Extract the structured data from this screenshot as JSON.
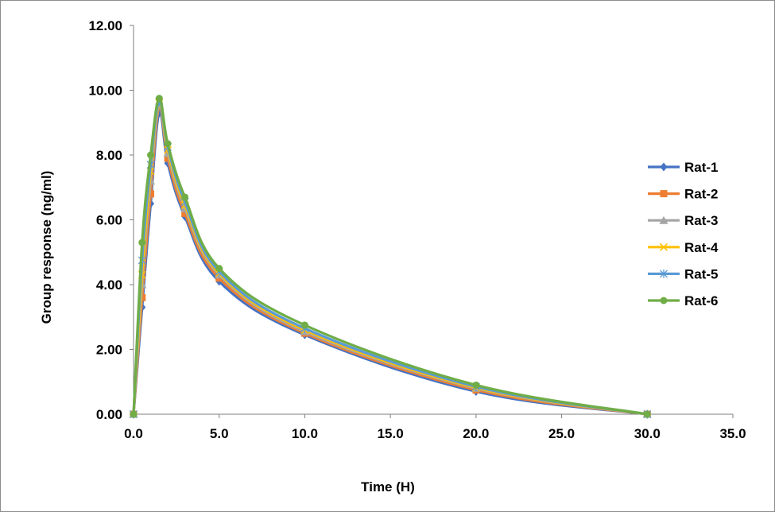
{
  "chart_data": {
    "type": "line",
    "title": "",
    "xlabel": "Time (H)",
    "ylabel": "Group response (ng/ml)",
    "xlim": [
      0,
      35
    ],
    "ylim": [
      0,
      12
    ],
    "x_ticks": [
      "0.0",
      "5.0",
      "10.0",
      "15.0",
      "20.0",
      "25.0",
      "30.0",
      "35.0"
    ],
    "y_ticks": [
      "0.00",
      "2.00",
      "4.00",
      "6.00",
      "8.00",
      "10.00",
      "12.00"
    ],
    "grid": false,
    "legend_position": "right",
    "x": [
      0,
      0.5,
      1,
      1.5,
      2,
      3,
      5,
      10,
      20,
      30
    ],
    "series": [
      {
        "name": "Rat-1",
        "color": "#4472C4",
        "marker": "diamond",
        "values": [
          0,
          3.3,
          6.5,
          9.3,
          7.75,
          6.1,
          4.1,
          2.45,
          0.7,
          0
        ]
      },
      {
        "name": "Rat-2",
        "color": "#ED7D31",
        "marker": "square",
        "values": [
          0,
          3.6,
          6.8,
          9.5,
          7.9,
          6.2,
          4.2,
          2.5,
          0.75,
          0
        ]
      },
      {
        "name": "Rat-3",
        "color": "#A5A5A5",
        "marker": "triangle",
        "values": [
          0,
          4.0,
          7.2,
          9.55,
          8.05,
          6.35,
          4.3,
          2.55,
          0.8,
          0
        ]
      },
      {
        "name": "Rat-4",
        "color": "#FFC000",
        "marker": "x",
        "values": [
          0,
          4.3,
          7.5,
          9.6,
          8.15,
          6.45,
          4.35,
          2.6,
          0.82,
          0
        ]
      },
      {
        "name": "Rat-5",
        "color": "#5B9BD5",
        "marker": "star",
        "values": [
          0,
          4.75,
          7.7,
          9.65,
          8.25,
          6.55,
          4.4,
          2.65,
          0.85,
          0
        ]
      },
      {
        "name": "Rat-6",
        "color": "#70AD47",
        "marker": "circle",
        "values": [
          0,
          5.3,
          8.0,
          9.75,
          8.35,
          6.7,
          4.5,
          2.75,
          0.9,
          0
        ]
      }
    ]
  }
}
